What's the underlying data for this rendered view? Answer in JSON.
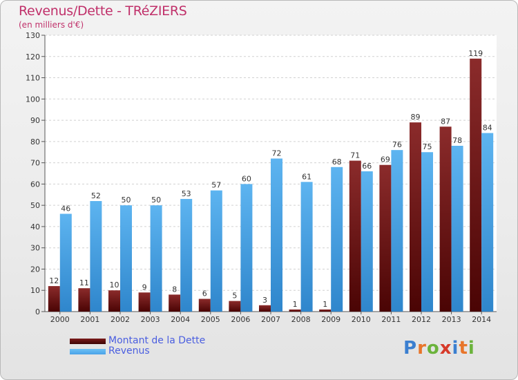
{
  "header": {
    "title": "Revenus/Dette - TRéZIERS",
    "subtitle": "(en milliers d'€)"
  },
  "legend": {
    "items": [
      {
        "label": "Montant de la Dette",
        "color": "#7b1a1a"
      },
      {
        "label": "Revenus",
        "color": "#4aa3e8"
      }
    ]
  },
  "logo": {
    "letters": [
      "P",
      "r",
      "o",
      "x",
      "i",
      "t",
      "i"
    ],
    "colors": [
      "#3b7fd0",
      "#e8752a",
      "#6bb33c",
      "#d63a2a",
      "#3b7fd0",
      "#e8752a",
      "#6bb33c"
    ]
  },
  "chart_data": {
    "type": "bar",
    "title": "Revenus/Dette - TRéZIERS",
    "ylabel": "(en milliers d'€)",
    "xlabel": "",
    "ylim": [
      0,
      130
    ],
    "yticks": [
      0,
      10,
      20,
      30,
      40,
      50,
      60,
      70,
      80,
      90,
      100,
      110,
      120,
      130
    ],
    "grid": true,
    "categories": [
      "2000",
      "2001",
      "2002",
      "2003",
      "2004",
      "2005",
      "2006",
      "2007",
      "2008",
      "2009",
      "2010",
      "2011",
      "2012",
      "2013",
      "2014"
    ],
    "series": [
      {
        "name": "Montant de la Dette",
        "color": "#7b1a1a",
        "values": [
          12,
          11,
          10,
          9,
          8,
          6,
          5,
          3,
          1,
          1,
          71,
          69,
          89,
          87,
          119
        ]
      },
      {
        "name": "Revenus",
        "color": "#4aa3e8",
        "values": [
          46,
          52,
          50,
          50,
          53,
          57,
          60,
          72,
          61,
          68,
          66,
          76,
          75,
          78,
          84
        ]
      }
    ]
  }
}
